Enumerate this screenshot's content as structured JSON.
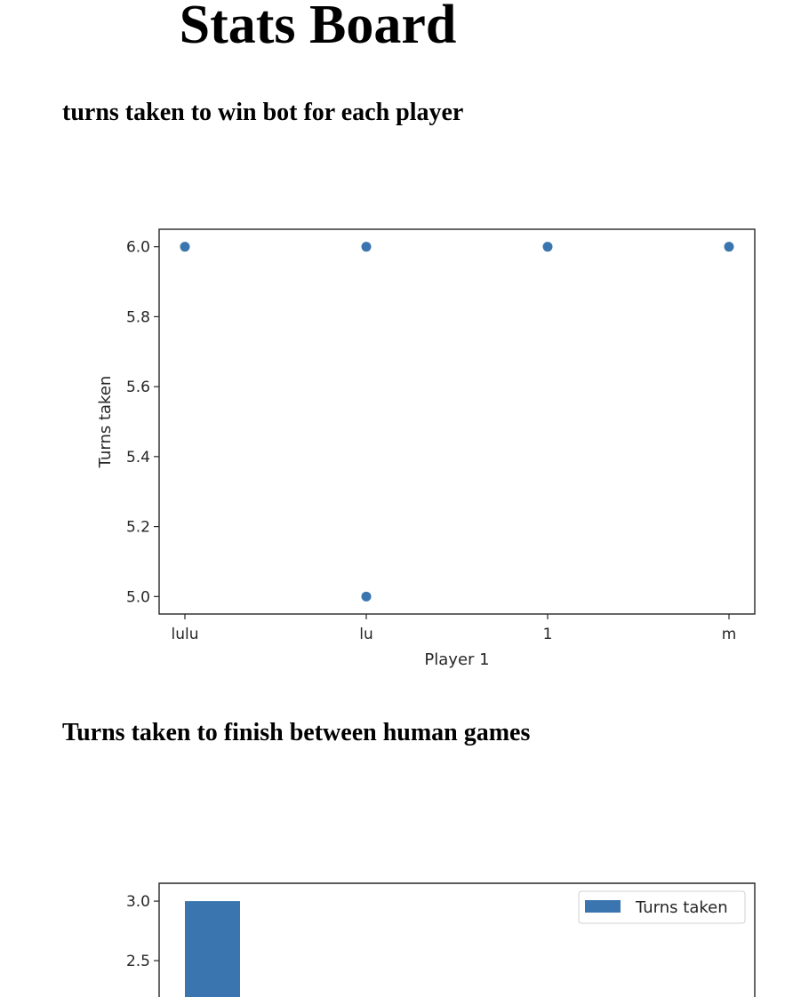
{
  "page": {
    "title": "Stats Board"
  },
  "sections": [
    {
      "heading": "turns taken to win bot for each player"
    },
    {
      "heading": "Turns taken to finish between human games"
    }
  ],
  "chart_data": [
    {
      "type": "scatter",
      "title": "",
      "xlabel": "Player 1",
      "ylabel": "Turns taken",
      "categories": [
        "lulu",
        "lu",
        "1",
        "m"
      ],
      "points": [
        {
          "x": "lulu",
          "y": 6.0
        },
        {
          "x": "lu",
          "y": 6.0
        },
        {
          "x": "lu",
          "y": 5.0
        },
        {
          "x": "1",
          "y": 6.0
        },
        {
          "x": "m",
          "y": 6.0
        }
      ],
      "yticks": [
        5.0,
        5.2,
        5.4,
        5.6,
        5.8,
        6.0
      ],
      "ylim": [
        4.95,
        6.05
      ],
      "grid": false,
      "color": "#3a75af"
    },
    {
      "type": "bar",
      "title": "",
      "xlabel": "",
      "ylabel": "",
      "legend": [
        "Turns taken"
      ],
      "legend_position": "top-right",
      "series": [
        {
          "name": "Turns taken",
          "values": [
            3.0
          ]
        }
      ],
      "yticks_visible": [
        3.0,
        2.5
      ],
      "ylim_top": 3.15,
      "grid": false,
      "color": "#3a75af"
    }
  ]
}
